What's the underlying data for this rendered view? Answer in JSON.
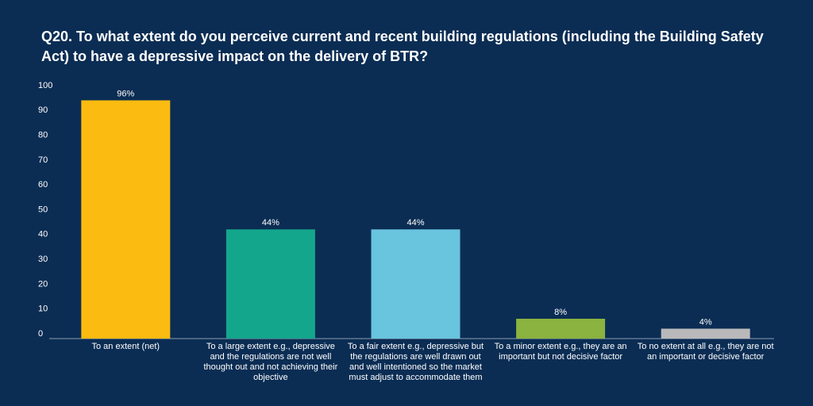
{
  "chart_data": {
    "type": "bar",
    "title": "Q20. To what extent do you perceive current and recent building regulations (including the Building Safety Act) to have a depressive impact on the delivery of BTR?",
    "categories": [
      "To an extent (net)",
      "To a large extent e.g., depressive and the regulations are not well thought out and not achieving their objective",
      "To a fair extent e.g., depressive but the regulations are well drawn out and well intentioned so the market must adjust to accommodate them",
      "To a minor extent e.g., they are an important but not decisive factor",
      "To no extent at all e.g., they are not an important or decisive factor"
    ],
    "values": [
      96,
      44,
      44,
      8,
      4
    ],
    "value_labels": [
      "96%",
      "44%",
      "44%",
      "8%",
      "4%"
    ],
    "colors": [
      "#fbbb10",
      "#14a68c",
      "#69c4de",
      "#8bb33f",
      "#b9b9bb"
    ],
    "ylim": [
      0,
      100
    ],
    "yticks": [
      0,
      10,
      20,
      30,
      40,
      50,
      60,
      70,
      80,
      90,
      100
    ],
    "grid": false
  }
}
